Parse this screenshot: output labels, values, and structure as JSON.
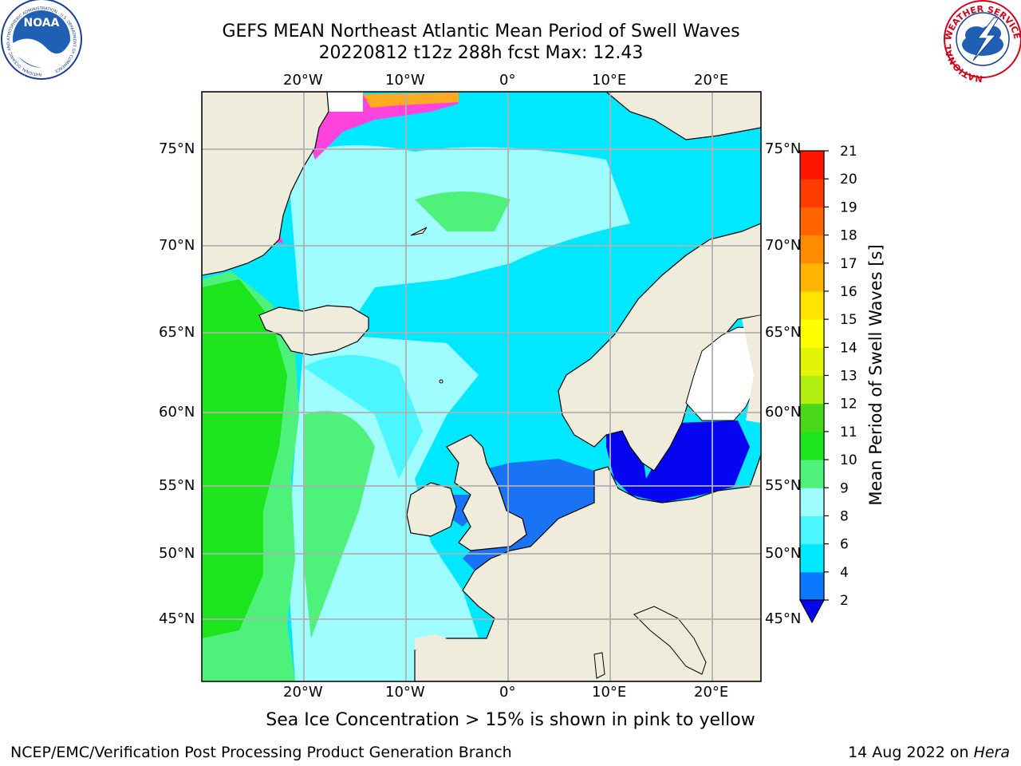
{
  "header": {
    "title": "GEFS MEAN Northeast Atlantic Mean Period of Swell Waves",
    "subtitle": "20220812 t12z 288h fcst   Max: 12.43"
  },
  "logos": {
    "left": "NOAA",
    "left_ring_text": "NATIONAL OCEANIC AND ATMOSPHERIC ADMINISTRATION · U.S. DEPARTMENT OF COMMERCE",
    "right_ring_text": "NATIONAL WEATHER SERVICE"
  },
  "map": {
    "lon_labels": [
      "20°W",
      "10°W",
      "0°",
      "10°E",
      "20°E"
    ],
    "lat_labels": [
      "75°N",
      "70°N",
      "65°N",
      "60°N",
      "55°N",
      "50°N",
      "45°N"
    ],
    "land_color": "#efecdc",
    "ocean_colors": {
      "cyan_4_6": "#00e8ff",
      "light_cyan_6_8": "#4cf6ff",
      "pale_cyan_8_9": "#9ffcff",
      "light_green_9_10": "#4ef27a",
      "green_10_11": "#1de51d",
      "blue_2_4": "#1a72f5",
      "dark_blue_lt_2": "#0505f0",
      "ice_pink": "#ff44dd",
      "ice_orange": "#ffaa22"
    }
  },
  "colorbar": {
    "label": "Mean Period of Swell Waves [s]",
    "ticks": [
      "2",
      "4",
      "6",
      "8",
      "9",
      "10",
      "11",
      "12",
      "13",
      "14",
      "15",
      "16",
      "17",
      "18",
      "19",
      "20",
      "21"
    ],
    "colors": [
      "#0a78ff",
      "#00e8ff",
      "#4cf6ff",
      "#9ffcff",
      "#4ef27a",
      "#1de51d",
      "#4ad81a",
      "#b2ef10",
      "#e2f507",
      "#ffff00",
      "#ffe400",
      "#ffb400",
      "#ff8c00",
      "#ff6400",
      "#ff3c00",
      "#ff1400"
    ],
    "extend_color": "#0505f0"
  },
  "notes": {
    "sea_ice": "Sea Ice Concentration > 15% is shown in pink to yellow"
  },
  "footer": {
    "left": "NCEP/EMC/Verification Post Processing Product Generation Branch",
    "right_date": "14 Aug 2022 on ",
    "right_host": "Hera"
  }
}
